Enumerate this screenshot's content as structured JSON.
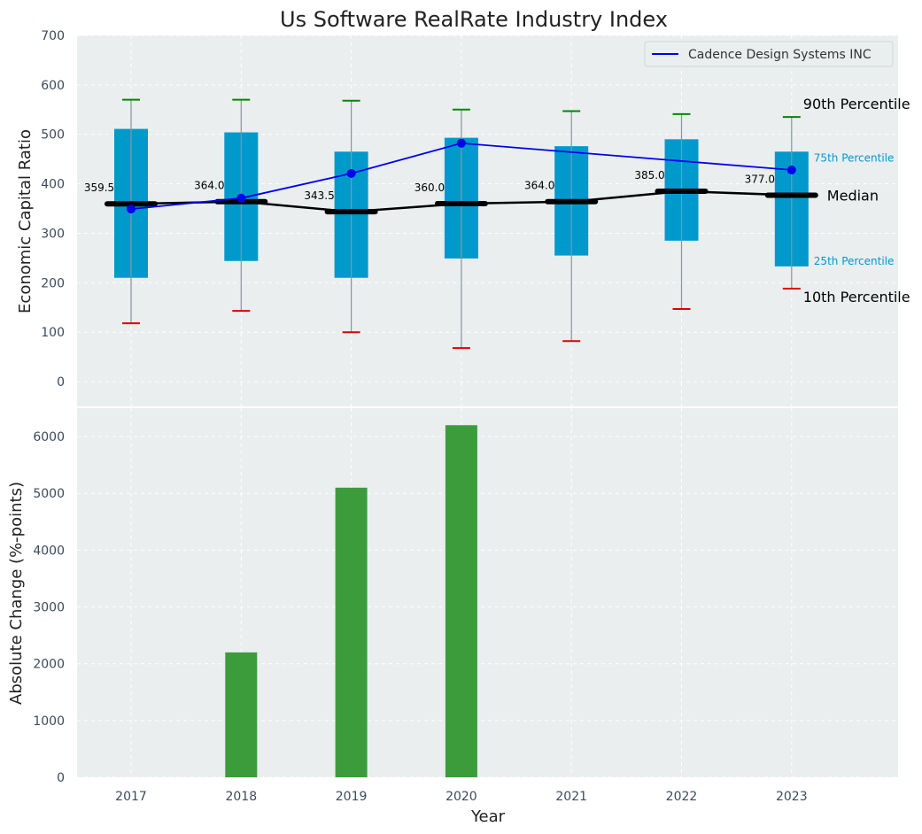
{
  "title": "Us Software RealRate Industry Index",
  "xlabel": "Year",
  "colors": {
    "panel_bg": "#eaeeef",
    "grid": "#ffffff",
    "box": "#0099cc",
    "whisker": "#8a9499",
    "p90_cap": "#008800",
    "p10_cap": "#dd0000",
    "median": "#000000",
    "company_line": "#0000ee",
    "bar": "#3c9c3c",
    "percentile_label_small": "#0099cc"
  },
  "chart_data": [
    {
      "type": "box",
      "ylabel": "Economic Capital Ratio",
      "ylim": [
        -50,
        700
      ],
      "yticks": [
        0,
        100,
        200,
        300,
        400,
        500,
        600,
        700
      ],
      "grid": true,
      "categories": [
        "2017",
        "2018",
        "2019",
        "2020",
        "2021",
        "2022",
        "2023"
      ],
      "p10": [
        118,
        143,
        100,
        68,
        82,
        147,
        188
      ],
      "p25": [
        210,
        244,
        210,
        249,
        255,
        285,
        233
      ],
      "median": [
        359.5,
        364.0,
        343.5,
        360.0,
        364.0,
        385.0,
        377.0
      ],
      "median_labels": [
        "359.5",
        "364.0",
        "343.5",
        "360.0",
        "364.0",
        "385.0",
        "377.0"
      ],
      "p75": [
        511,
        504,
        465,
        493,
        476,
        490,
        465
      ],
      "p90": [
        570,
        570,
        568,
        550,
        547,
        541,
        535
      ],
      "series": [
        {
          "name": "Cadence Design Systems INC",
          "values": [
            349,
            371,
            421,
            482,
            null,
            null,
            428
          ]
        }
      ],
      "legend_position": "top-right",
      "annotations": {
        "p90": "90th Percentile",
        "p75": "75th Percentile",
        "median": "Median",
        "p25": "25th Percentile",
        "p10": "10th Percentile"
      }
    },
    {
      "type": "bar",
      "ylabel": "Absolute Change (%-points)",
      "xlabel": "Year",
      "ylim": [
        0,
        6500
      ],
      "yticks": [
        0,
        1000,
        2000,
        3000,
        4000,
        5000,
        6000
      ],
      "grid": true,
      "categories": [
        "2017",
        "2018",
        "2019",
        "2020",
        "2021",
        "2022",
        "2023"
      ],
      "values": [
        0,
        2200,
        5100,
        6200,
        0,
        0,
        0
      ]
    }
  ]
}
